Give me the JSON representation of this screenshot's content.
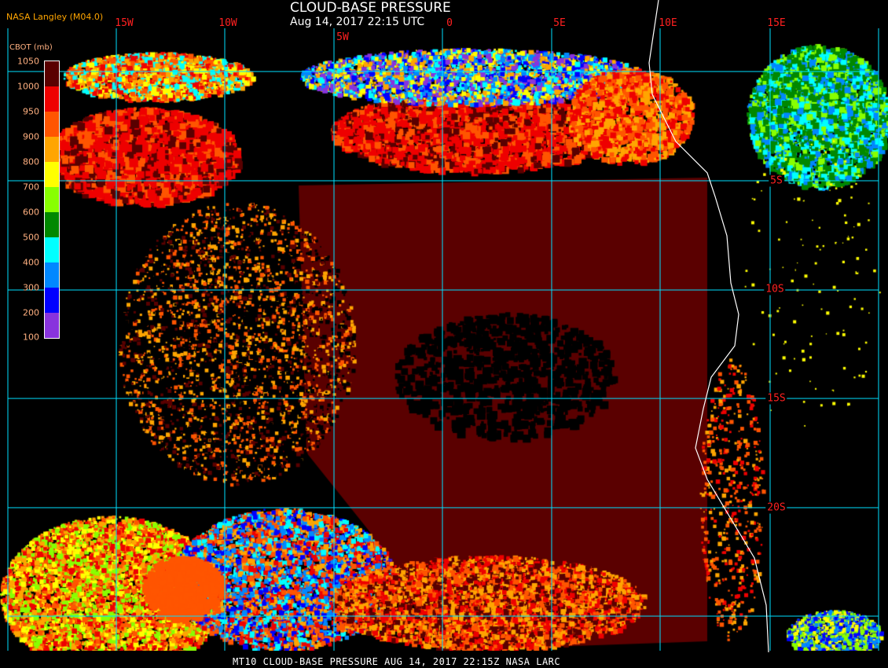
{
  "header": {
    "title": "CLOUD-BASE PRESSURE",
    "subtitle": "Aug 14, 2017 22:15 UTC",
    "organization": "NASA Langley (M04.0)"
  },
  "map": {
    "type": "satellite cloud-base pressure map",
    "longitude_labels": [
      "15W",
      "10W",
      "5W",
      "0",
      "5E",
      "10E",
      "15E"
    ],
    "latitude_labels": [
      "5S",
      "10S",
      "15S",
      "20S"
    ],
    "gridline_color": "#00e0ff",
    "coastline_color": "#ffffff"
  },
  "legend": {
    "title": "CBOT (mb)",
    "labels": [
      "1050",
      "1000",
      "950",
      "900",
      "800",
      "700",
      "600",
      "500",
      "400",
      "300",
      "200",
      "100"
    ],
    "colors": [
      "#5a0000",
      "#ee0000",
      "#ff5500",
      "#ffa500",
      "#ffff00",
      "#88ff00",
      "#008800",
      "#00ffff",
      "#0088ff",
      "#0000ff",
      "#8833dd"
    ]
  },
  "footer": {
    "text": "MT10  CLOUD-BASE PRESSURE   AUG 14, 2017 22:15Z   NASA LARC"
  }
}
